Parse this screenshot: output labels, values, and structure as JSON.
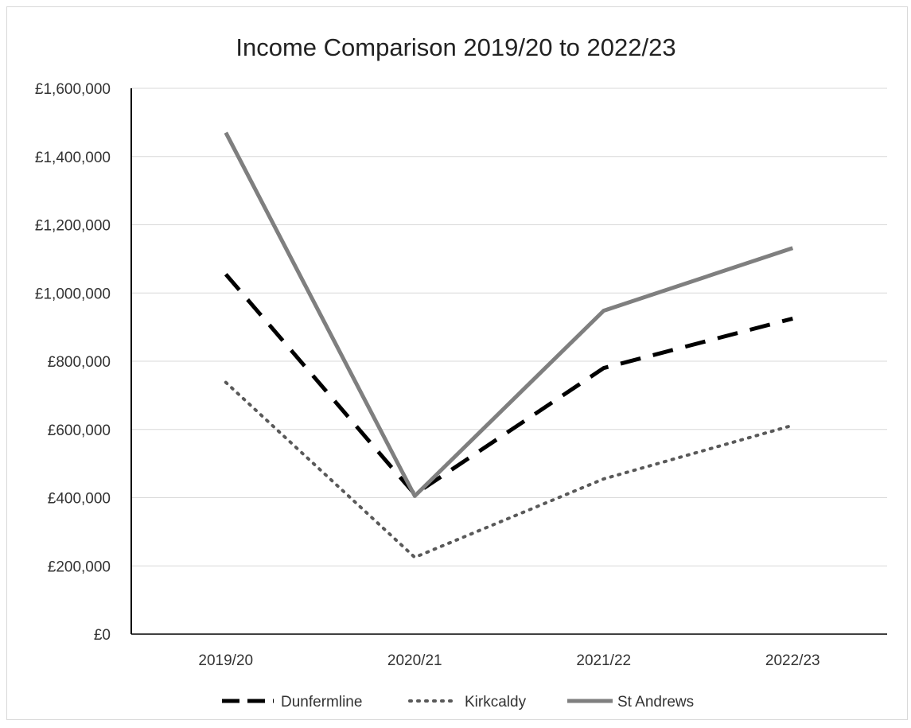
{
  "chart_data": {
    "type": "line",
    "title": "Income Comparison 2019/20 to 2022/23",
    "xlabel": "",
    "ylabel": "",
    "categories": [
      "2019/20",
      "2020/21",
      "2021/22",
      "2022/23"
    ],
    "y_ticks": [
      "£0",
      "£200,000",
      "£400,000",
      "£600,000",
      "£800,000",
      "£1,000,000",
      "£1,200,000",
      "£1,400,000",
      "£1,600,000"
    ],
    "ylim": [
      0,
      1600000
    ],
    "grid": true,
    "legend": "bottom",
    "series": [
      {
        "name": "Dunfermline",
        "values": [
          1055000,
          410000,
          780000,
          925000
        ],
        "color": "#000000",
        "style": "dashed"
      },
      {
        "name": "Kirkcaldy",
        "values": [
          738000,
          225000,
          455000,
          612000
        ],
        "color": "#595959",
        "style": "dotted"
      },
      {
        "name": "St Andrews",
        "values": [
          1470000,
          405000,
          948000,
          1132000
        ],
        "color": "#7f7f7f",
        "style": "solid"
      }
    ]
  }
}
